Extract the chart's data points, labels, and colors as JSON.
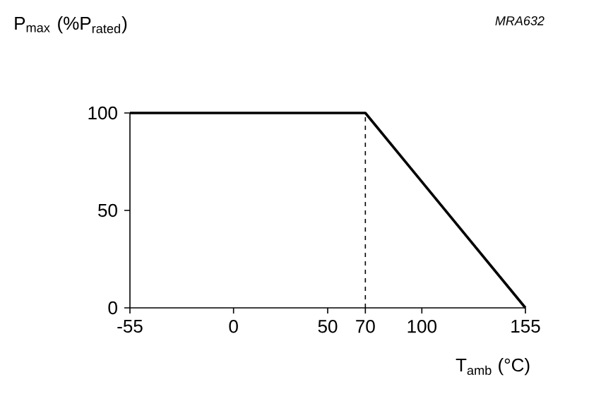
{
  "chart_data": {
    "type": "line",
    "xlabel": "T$_{amb}$ (°C)",
    "ylabel": "P$_{max}$ (%P$_{rated}$)",
    "annotations": [
      "MRA632"
    ],
    "x": [
      -55,
      70,
      155
    ],
    "values": [
      100,
      100,
      0
    ],
    "color": "#000000",
    "line_style": "solid",
    "xlim": [
      -55,
      155
    ],
    "ylim": [
      0,
      100
    ],
    "xticks": [
      -55,
      0,
      50,
      70,
      100,
      155
    ],
    "yticks": [
      0,
      50,
      100
    ],
    "ref_lines": [
      {
        "axis": "x",
        "value": 70,
        "line_style": "dashed",
        "color": "#000000"
      }
    ]
  }
}
